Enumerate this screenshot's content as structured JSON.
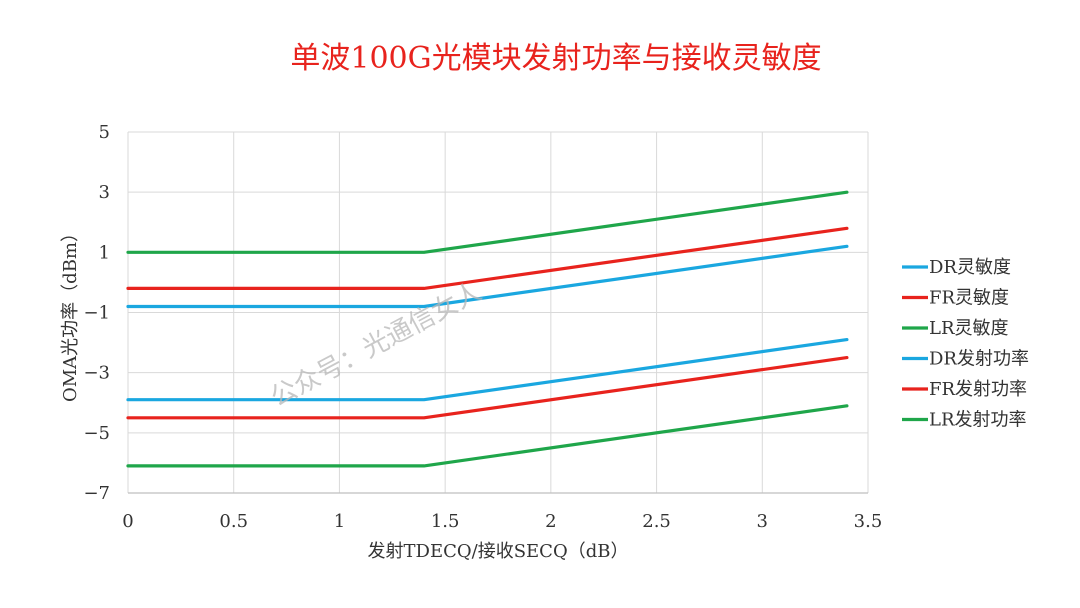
{
  "chart_data": {
    "type": "line",
    "title": "单波100G光模块发射功率与接收灵敏度",
    "xlabel": "发射TDECQ/接收SECQ（dB）",
    "ylabel": "OMA光功率（dBm）",
    "xlim": [
      0,
      3.5
    ],
    "ylim": [
      -7,
      5
    ],
    "xticks": [
      0,
      0.5,
      1,
      1.5,
      2,
      2.5,
      3,
      3.5
    ],
    "xtick_labels": [
      "0",
      "0.5",
      "1",
      "1.5",
      "2",
      "2.5",
      "3",
      "3.5"
    ],
    "yticks": [
      -7,
      -5,
      -3,
      -1,
      1,
      3,
      5
    ],
    "ytick_labels": [
      "−7",
      "−5",
      "−3",
      "−1",
      "1",
      "3",
      "5"
    ],
    "grid": true,
    "legend_position": "right",
    "series": [
      {
        "name": "DR灵敏度",
        "color": "#1aa7e0",
        "x": [
          0,
          1.4,
          3.4
        ],
        "y": [
          -0.8,
          -0.8,
          1.2
        ]
      },
      {
        "name": "FR灵敏度",
        "color": "#e8231d",
        "x": [
          0,
          1.4,
          3.4
        ],
        "y": [
          -0.2,
          -0.2,
          1.8
        ]
      },
      {
        "name": "LR灵敏度",
        "color": "#1fa64a",
        "x": [
          0,
          1.4,
          3.4
        ],
        "y": [
          1.0,
          1.0,
          3.0
        ]
      },
      {
        "name": "DR发射功率",
        "color": "#1aa7e0",
        "x": [
          0,
          1.4,
          3.4
        ],
        "y": [
          -3.9,
          -3.9,
          -1.9
        ]
      },
      {
        "name": "FR发射功率",
        "color": "#e8231d",
        "x": [
          0,
          1.4,
          3.4
        ],
        "y": [
          -4.5,
          -4.5,
          -2.5
        ]
      },
      {
        "name": "LR发射功率",
        "color": "#1fa64a",
        "x": [
          0,
          1.4,
          3.4
        ],
        "y": [
          -6.1,
          -6.1,
          -4.1
        ]
      }
    ],
    "watermark": "公众号：光通信女人"
  }
}
